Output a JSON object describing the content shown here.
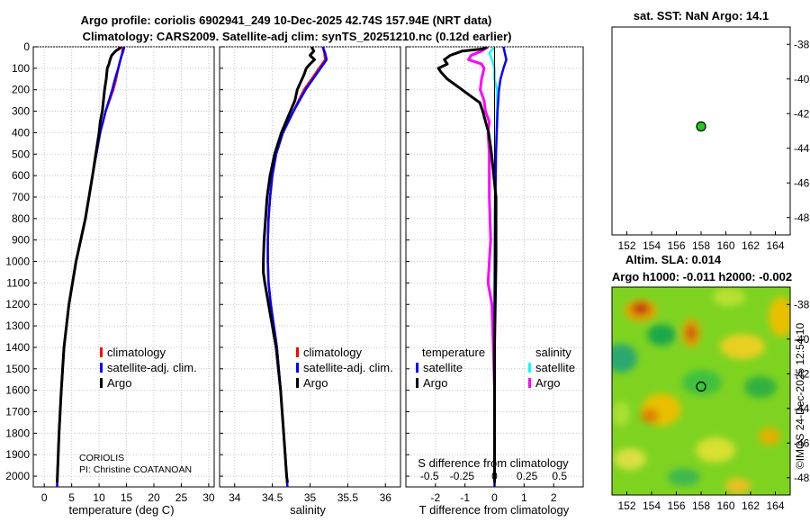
{
  "header": {
    "title_line1": "Argo profile: coriolis 6902941_249 10-Dec-2025 42.74S 157.94E (NRT data)",
    "title_line2": "Climatology: CARS2009. Satellite-adj clim: synTS_20251210.nc (0.12d earlier)"
  },
  "sst_map": {
    "title": "sat. SST: NaN Argo: 14.1",
    "float_lon": 158.0,
    "float_lat": -42.74
  },
  "sla_map": {
    "title_line1": "Altim. SLA: 0.014",
    "title_line2": "Argo h1000: -0.011 h2000: -0.002"
  },
  "credit": {
    "institution": "CORIOLIS",
    "pi": "PI: Christine COATANOAN",
    "stamp": "©IMOS 24-Dec-2025 12:54:10"
  },
  "colors": {
    "climatology": "#ff0000",
    "satellite_adj": "#0000ff",
    "argo": "#000000",
    "sat_t": "#00ffff",
    "sat_s": "#ff00ff",
    "float_dot": "#22cc22"
  },
  "chart_data": [
    {
      "id": "temperature",
      "type": "line",
      "xlabel": "temperature (deg C)",
      "xlim": [
        -2,
        31
      ],
      "ylim": [
        0,
        2050
      ],
      "x_ticks": [
        0,
        5,
        10,
        15,
        20,
        25,
        30
      ],
      "y_ticks": [
        0,
        100,
        200,
        300,
        400,
        500,
        600,
        700,
        800,
        900,
        1000,
        1100,
        1200,
        1300,
        1400,
        1500,
        1600,
        1700,
        1800,
        1900,
        2000
      ],
      "legend": [
        "climatology",
        "satellite-adj. clim.",
        "Argo"
      ],
      "series": [
        {
          "name": "climatology",
          "depth": [
            0,
            30,
            60,
            100,
            150,
            200,
            300,
            400,
            500,
            600,
            800,
            1000,
            1200,
            1400,
            1600,
            1800,
            2000,
            2050
          ],
          "values": [
            14.3,
            14.2,
            13.9,
            13.5,
            13.1,
            12.6,
            11.2,
            10.2,
            9.5,
            8.8,
            7.5,
            5.8,
            4.5,
            3.6,
            3.1,
            2.7,
            2.4,
            2.35
          ]
        },
        {
          "name": "satellite-adj. clim.",
          "depth": [
            0,
            20,
            50,
            100,
            150,
            200,
            300,
            400,
            500,
            600,
            800,
            1000,
            1200,
            1400,
            1600,
            1800,
            2000,
            2050
          ],
          "values": [
            14.6,
            14.4,
            14.0,
            13.5,
            12.9,
            12.4,
            11.2,
            10.2,
            9.5,
            8.8,
            7.5,
            5.8,
            4.5,
            3.6,
            3.1,
            2.7,
            2.4,
            2.35
          ]
        },
        {
          "name": "Argo",
          "depth": [
            0,
            10,
            20,
            40,
            60,
            80,
            100,
            150,
            200,
            300,
            350,
            400,
            500,
            600,
            800,
            1000,
            1200,
            1400,
            1600,
            1800,
            2000,
            2030
          ],
          "values": [
            14.0,
            13.6,
            13.0,
            12.3,
            12.0,
            11.8,
            11.5,
            11.3,
            11.0,
            10.6,
            10.2,
            10.0,
            9.4,
            8.8,
            7.5,
            5.8,
            4.5,
            3.6,
            3.1,
            2.7,
            2.4,
            2.35
          ]
        }
      ]
    },
    {
      "id": "salinity",
      "type": "line",
      "xlabel": "salinity",
      "xlim": [
        33.8,
        36.2
      ],
      "ylim": [
        0,
        2050
      ],
      "x_ticks": [
        34,
        34.5,
        35,
        35.5,
        36
      ],
      "legend": [
        "climatology",
        "satellite-adj. clim.",
        "Argo"
      ],
      "series": [
        {
          "name": "climatology",
          "depth": [
            0,
            30,
            60,
            100,
            150,
            200,
            250,
            300,
            400,
            500,
            600,
            700,
            800,
            900,
            1000,
            1100,
            1200,
            1300,
            1400,
            1600,
            1800,
            2000,
            2050
          ],
          "values": [
            35.17,
            35.19,
            35.2,
            35.12,
            35.02,
            34.92,
            34.85,
            34.78,
            34.64,
            34.55,
            34.5,
            34.47,
            34.45,
            34.44,
            34.44,
            34.45,
            34.48,
            34.52,
            34.56,
            34.61,
            34.65,
            34.69,
            34.7
          ]
        },
        {
          "name": "satellite-adj. clim.",
          "depth": [
            0,
            30,
            60,
            100,
            150,
            200,
            250,
            300,
            400,
            500,
            600,
            700,
            800,
            900,
            1000,
            1100,
            1200,
            1300,
            1400,
            1600,
            1800,
            2000,
            2050
          ],
          "values": [
            35.17,
            35.2,
            35.22,
            35.14,
            35.04,
            34.94,
            34.86,
            34.78,
            34.64,
            34.55,
            34.5,
            34.47,
            34.45,
            34.44,
            34.44,
            34.45,
            34.48,
            34.52,
            34.56,
            34.61,
            34.65,
            34.69,
            34.7
          ]
        },
        {
          "name": "Argo",
          "depth": [
            0,
            20,
            40,
            60,
            80,
            100,
            130,
            160,
            200,
            250,
            300,
            350,
            400,
            500,
            600,
            700,
            800,
            900,
            1000,
            1050,
            1100,
            1200,
            1300,
            1400,
            1600,
            1800,
            2000,
            2030
          ],
          "values": [
            35.02,
            35.05,
            35.0,
            35.06,
            35.0,
            34.95,
            34.92,
            34.88,
            34.83,
            34.8,
            34.74,
            34.68,
            34.62,
            34.53,
            34.47,
            34.43,
            34.41,
            34.39,
            34.38,
            34.38,
            34.4,
            34.45,
            34.5,
            34.55,
            34.61,
            34.65,
            34.69,
            34.7
          ]
        }
      ]
    },
    {
      "id": "difference",
      "type": "line",
      "xlabel": "T difference from climatology",
      "top_xlabel": "S difference from climatology",
      "xlim": [
        -3,
        3
      ],
      "ylim": [
        0,
        2050
      ],
      "x_ticks": [
        -2,
        -1,
        0,
        1,
        2
      ],
      "top_ticks": [
        -0.5,
        -0.25,
        0,
        0.25,
        0.5
      ],
      "legend_t_title": "temperature",
      "legend_s_title": "salinity",
      "legend_t": [
        "satellite",
        "Argo"
      ],
      "legend_s": [
        "satellite",
        "Argo"
      ],
      "series": [
        {
          "name": "T satellite",
          "depth": [
            0,
            30,
            60,
            100,
            150,
            200,
            300,
            500,
            800,
            1200,
            1600,
            2000,
            2050
          ],
          "values": [
            0.3,
            0.35,
            0.4,
            0.3,
            0.2,
            0.15,
            0.1,
            0.05,
            0.02,
            0.0,
            0.0,
            0.0,
            0.0
          ]
        },
        {
          "name": "T Argo",
          "depth": [
            0,
            10,
            20,
            40,
            60,
            80,
            100,
            120,
            150,
            180,
            200,
            230,
            260,
            300,
            350,
            400,
            500,
            700,
            1000,
            1400,
            1800,
            2030
          ],
          "values": [
            -0.25,
            -0.4,
            -1.1,
            -1.5,
            -1.7,
            -1.6,
            -1.9,
            -1.8,
            -1.6,
            -1.3,
            -1.1,
            -0.8,
            -0.5,
            -0.4,
            -0.3,
            -0.2,
            -0.1,
            0.05,
            0.05,
            0.0,
            0.0,
            0.0
          ]
        },
        {
          "name": "S satellite",
          "depth": [
            0,
            30,
            60,
            100,
            150,
            200,
            300,
            500,
            800,
            1200,
            1600,
            2000,
            2050
          ],
          "values": [
            0.0,
            -0.04,
            -0.02,
            0.0,
            0.0,
            0.02,
            0.02,
            0.01,
            0.0,
            0.0,
            0.0,
            0.0,
            0.0
          ]
        },
        {
          "name": "S Argo",
          "depth": [
            0,
            20,
            40,
            60,
            80,
            100,
            150,
            200,
            250,
            300,
            350,
            400,
            500,
            700,
            900,
            1000,
            1100,
            1200,
            1400,
            1600,
            1800,
            2000,
            2030
          ],
          "values": [
            -0.05,
            -0.1,
            -0.18,
            -0.2,
            -0.1,
            -0.08,
            -0.1,
            -0.11,
            -0.08,
            -0.07,
            -0.04,
            -0.05,
            -0.04,
            -0.04,
            -0.03,
            -0.04,
            -0.05,
            -0.02,
            -0.01,
            0.0,
            0.0,
            0.0,
            0.0
          ]
        }
      ]
    },
    {
      "id": "sst_map",
      "type": "scatter",
      "xlim": [
        150.8,
        165.2
      ],
      "ylim": [
        -49,
        -37
      ],
      "x_ticks": [
        152,
        154,
        156,
        158,
        160,
        162,
        164
      ],
      "y_ticks": [
        -38,
        -40,
        -42,
        -44,
        -46,
        -48
      ],
      "points": [
        {
          "x": 158.0,
          "y": -42.74
        }
      ]
    },
    {
      "id": "sla_map",
      "type": "heatmap",
      "xlim": [
        150.8,
        165.2
      ],
      "ylim": [
        -49,
        -37
      ],
      "x_ticks": [
        152,
        154,
        156,
        158,
        160,
        162,
        164
      ],
      "y_ticks": [
        -38,
        -40,
        -42,
        -44,
        -46,
        -48
      ],
      "points": [
        {
          "x": 158.0,
          "y": -42.74
        }
      ]
    }
  ]
}
